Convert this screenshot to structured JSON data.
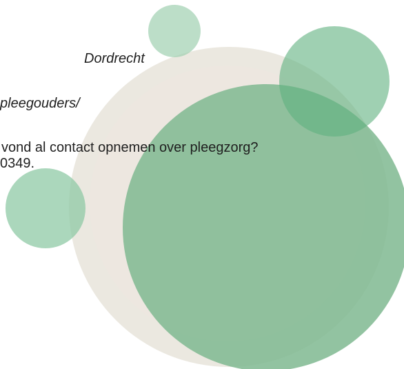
{
  "lines": [
    "Dordrecht",
    "pleegouders/",
    "vond al contact opnemen over pleegzorg?",
    "0349."
  ]
}
